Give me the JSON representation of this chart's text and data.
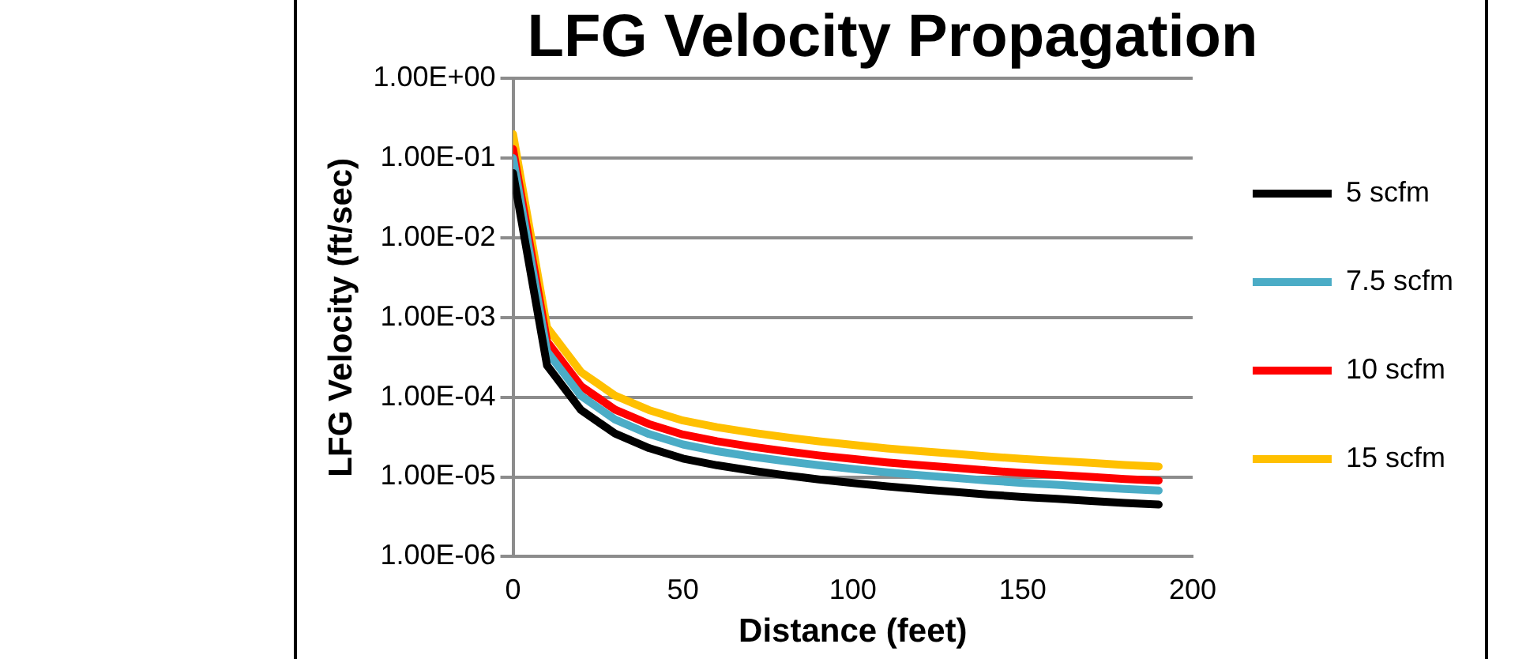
{
  "chart_data": {
    "type": "line",
    "title": "LFG Velocity Propagation",
    "xlabel": "Distance (feet)",
    "ylabel": "LFG Velocity (ft/sec)",
    "x": [
      0,
      10,
      20,
      30,
      40,
      50,
      60,
      70,
      80,
      90,
      100,
      110,
      120,
      130,
      140,
      150,
      160,
      170,
      180,
      190
    ],
    "series": [
      {
        "name": "5 scfm",
        "color": "#000000",
        "values": [
          0.065,
          0.00025,
          6.9e-05,
          3.5e-05,
          2.3e-05,
          1.7e-05,
          1.4e-05,
          1.2e-05,
          1.05e-05,
          9.3e-06,
          8.4e-06,
          7.6e-06,
          7e-06,
          6.5e-06,
          6e-06,
          5.6e-06,
          5.3e-06,
          5e-06,
          4.7e-06,
          4.5e-06
        ]
      },
      {
        "name": "7.5 scfm",
        "color": "#4bacc6",
        "values": [
          0.1,
          0.000375,
          0.000104,
          5.25e-05,
          3.45e-05,
          2.55e-05,
          2.1e-05,
          1.8e-05,
          1.58e-05,
          1.4e-05,
          1.26e-05,
          1.14e-05,
          1.05e-05,
          9.75e-06,
          9e-06,
          8.4e-06,
          7.95e-06,
          7.5e-06,
          7.05e-06,
          6.75e-06
        ]
      },
      {
        "name": "10 scfm",
        "color": "#ff0000",
        "values": [
          0.13,
          0.0005,
          0.000138,
          7e-05,
          4.6e-05,
          3.4e-05,
          2.8e-05,
          2.4e-05,
          2.1e-05,
          1.86e-05,
          1.68e-05,
          1.52e-05,
          1.4e-05,
          1.3e-05,
          1.2e-05,
          1.12e-05,
          1.06e-05,
          1e-05,
          9.4e-06,
          9e-06
        ]
      },
      {
        "name": "15 scfm",
        "color": "#ffc000",
        "values": [
          0.2,
          0.00075,
          0.000207,
          0.000105,
          6.9e-05,
          5.1e-05,
          4.2e-05,
          3.6e-05,
          3.15e-05,
          2.79e-05,
          2.52e-05,
          2.28e-05,
          2.1e-05,
          1.95e-05,
          1.8e-05,
          1.68e-05,
          1.59e-05,
          1.5e-05,
          1.41e-05,
          1.35e-05
        ]
      }
    ],
    "xlim": [
      0,
      200
    ],
    "xticks": [
      0,
      50,
      100,
      150,
      200
    ],
    "ylim": [
      1e-06,
      1
    ],
    "yticks": [
      {
        "value": 1e-06,
        "label": "1.00E-06"
      },
      {
        "value": 1e-05,
        "label": "1.00E-05"
      },
      {
        "value": 0.0001,
        "label": "1.00E-04"
      },
      {
        "value": 0.001,
        "label": "1.00E-03"
      },
      {
        "value": 0.01,
        "label": "1.00E-02"
      },
      {
        "value": 0.1,
        "label": "1.00E-01"
      },
      {
        "value": 1,
        "label": "1.00E+00"
      }
    ],
    "log": "y",
    "grid": "y",
    "legend": "right",
    "marker": "none",
    "line_style": "solid"
  }
}
